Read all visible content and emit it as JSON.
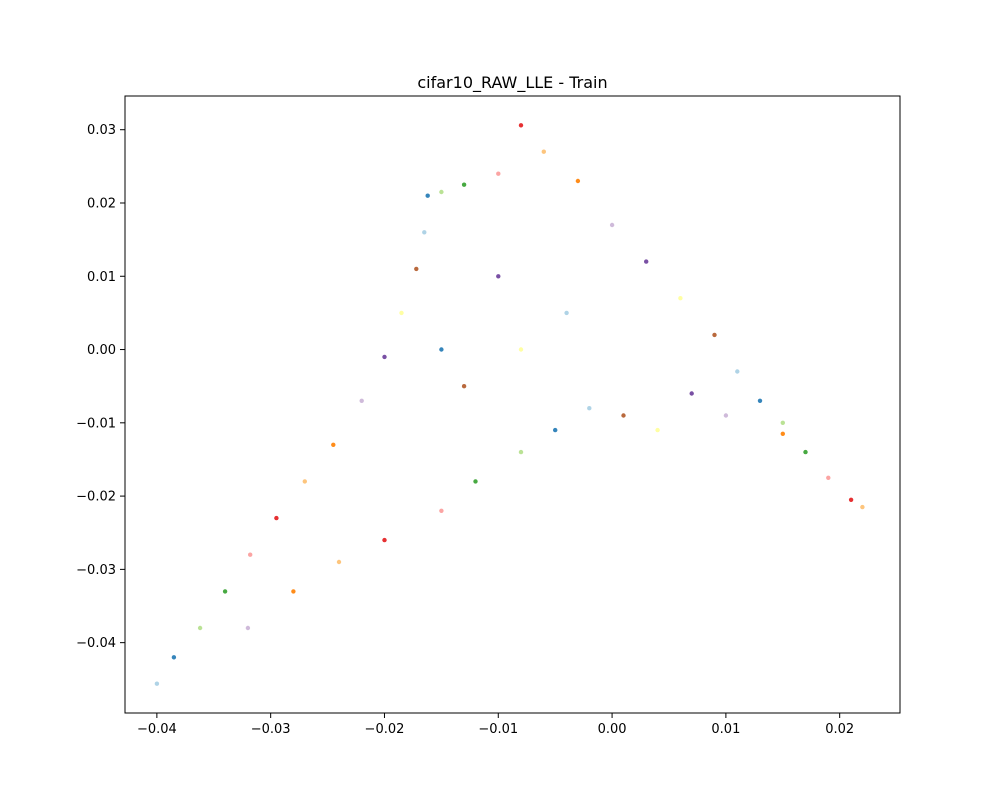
{
  "chart_data": {
    "type": "scatter",
    "title": "cifar10_RAW_LLE - Train",
    "xlabel": "",
    "ylabel": "",
    "xlim": [
      -0.0428,
      0.0253
    ],
    "ylim": [
      -0.0496,
      0.0346
    ],
    "x_ticks": [
      -0.04,
      -0.03,
      -0.02,
      -0.01,
      0.0,
      0.01,
      0.02
    ],
    "x_tick_labels": [
      "−0.04",
      "−0.03",
      "−0.02",
      "−0.01",
      "0.00",
      "0.01",
      "0.02"
    ],
    "y_ticks": [
      -0.04,
      -0.03,
      -0.02,
      -0.01,
      0.0,
      0.01,
      0.02,
      0.03
    ],
    "y_tick_labels": [
      "−0.04",
      "−0.03",
      "−0.02",
      "−0.01",
      "0.00",
      "0.01",
      "0.02",
      "0.03"
    ],
    "grid": false,
    "legend": "none",
    "marker_colors": [
      "#a6cee3",
      "#1f78b4",
      "#b2df8a",
      "#33a02c",
      "#fb9a99",
      "#e31a1c",
      "#fdbf6f",
      "#ff7f00",
      "#cab2d6",
      "#6a3d9a",
      "#ffff99",
      "#b15928"
    ],
    "series": [
      {
        "values": [
          [
            -0.04,
            -0.0456
          ],
          [
            -0.0385,
            -0.042
          ],
          [
            -0.0362,
            -0.038
          ],
          [
            -0.034,
            -0.033
          ],
          [
            -0.0318,
            -0.028
          ],
          [
            -0.0295,
            -0.023
          ],
          [
            -0.027,
            -0.018
          ],
          [
            -0.0245,
            -0.013
          ],
          [
            -0.022,
            -0.007
          ],
          [
            -0.02,
            -0.001
          ],
          [
            -0.0185,
            0.005
          ],
          [
            -0.0172,
            0.011
          ],
          [
            -0.0165,
            0.016
          ],
          [
            -0.0162,
            0.021
          ],
          [
            -0.015,
            0.0215
          ],
          [
            -0.013,
            0.0225
          ],
          [
            -0.01,
            0.024
          ],
          [
            -0.008,
            0.0306
          ],
          [
            -0.006,
            0.027
          ],
          [
            -0.003,
            0.023
          ],
          [
            0.0,
            0.017
          ],
          [
            0.003,
            0.012
          ],
          [
            0.006,
            0.007
          ],
          [
            0.009,
            0.002
          ],
          [
            0.011,
            -0.003
          ],
          [
            0.013,
            -0.007
          ],
          [
            0.015,
            -0.01
          ],
          [
            0.017,
            -0.014
          ],
          [
            0.019,
            -0.0175
          ],
          [
            0.021,
            -0.0205
          ],
          [
            0.022,
            -0.0215
          ],
          [
            0.015,
            -0.0115
          ],
          [
            0.01,
            -0.009
          ],
          [
            0.007,
            -0.006
          ],
          [
            0.004,
            -0.011
          ],
          [
            0.001,
            -0.009
          ],
          [
            -0.002,
            -0.008
          ],
          [
            -0.005,
            -0.011
          ],
          [
            -0.008,
            -0.014
          ],
          [
            -0.012,
            -0.018
          ],
          [
            -0.015,
            -0.022
          ],
          [
            -0.02,
            -0.026
          ],
          [
            -0.024,
            -0.029
          ],
          [
            -0.028,
            -0.033
          ],
          [
            -0.032,
            -0.038
          ],
          [
            -0.01,
            0.01
          ],
          [
            -0.008,
            0.0
          ],
          [
            -0.013,
            -0.005
          ],
          [
            -0.004,
            0.005
          ],
          [
            -0.015,
            0.0
          ]
        ]
      }
    ]
  }
}
